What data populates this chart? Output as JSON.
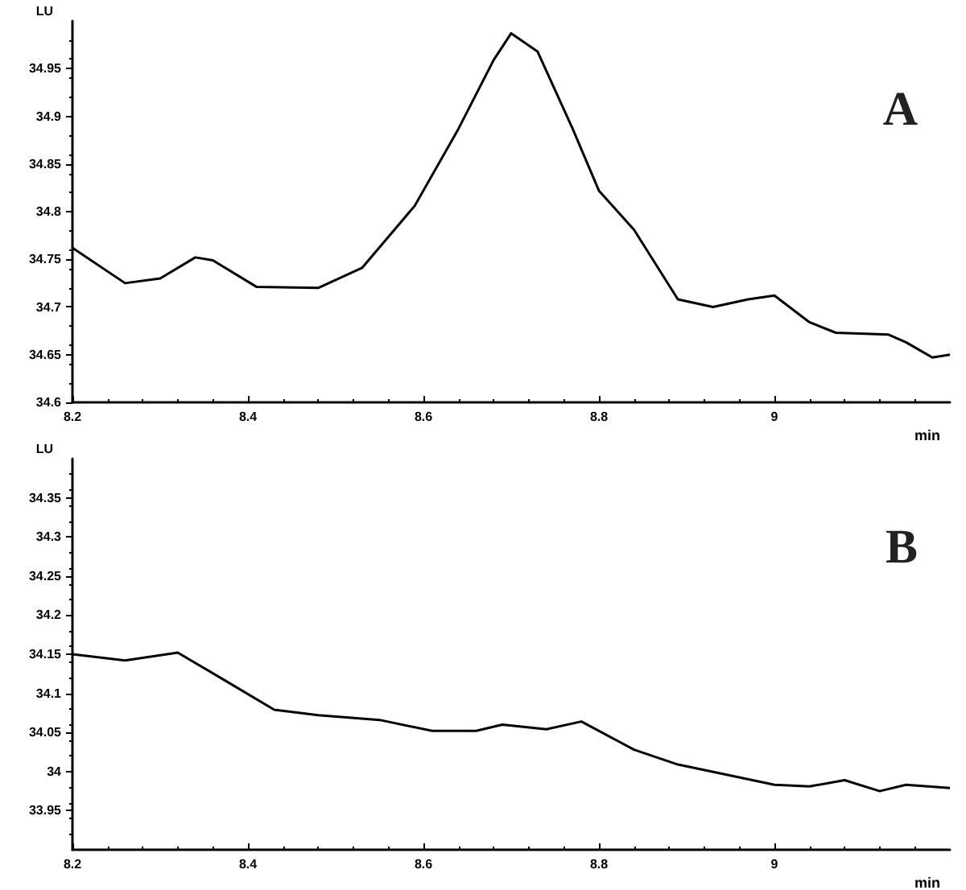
{
  "chart_data": [
    {
      "type": "line",
      "xlabel": "min",
      "ylabel": "LU",
      "annotations": [
        "A"
      ],
      "x": [
        8.2,
        8.26,
        8.3,
        8.34,
        8.36,
        8.41,
        8.48,
        8.53,
        8.59,
        8.64,
        8.68,
        8.7,
        8.73,
        8.77,
        8.8,
        8.84,
        8.89,
        8.93,
        8.97,
        9.0,
        9.04,
        9.07,
        9.13,
        9.15,
        9.18,
        9.2
      ],
      "series": [
        {
          "color": "#000000",
          "values": [
            34.762,
            34.725,
            34.73,
            34.752,
            34.749,
            34.721,
            34.72,
            34.741,
            34.806,
            34.887,
            34.959,
            34.987,
            34.968,
            34.887,
            34.822,
            34.781,
            34.708,
            34.7,
            34.708,
            34.712,
            34.684,
            34.673,
            34.671,
            34.663,
            34.647,
            34.65
          ]
        }
      ],
      "xlim": [
        8.2,
        9.2
      ],
      "xticks": [
        8.2,
        8.4,
        8.6,
        8.8,
        9
      ],
      "ylim": [
        34.6,
        35.0
      ],
      "yticks": [
        34.6,
        34.65,
        34.7,
        34.75,
        34.8,
        34.85,
        34.9,
        34.95
      ],
      "grid": false,
      "marker": "none",
      "line_style": "solid"
    },
    {
      "type": "line",
      "xlabel": "min",
      "ylabel": "LU",
      "annotations": [
        "B"
      ],
      "x": [
        8.2,
        8.26,
        8.32,
        8.37,
        8.43,
        8.48,
        8.55,
        8.61,
        8.66,
        8.69,
        8.74,
        8.78,
        8.84,
        8.89,
        8.95,
        9.0,
        9.04,
        9.08,
        9.12,
        9.15,
        9.2
      ],
      "series": [
        {
          "color": "#000000",
          "values": [
            34.15,
            34.142,
            34.152,
            34.119,
            34.079,
            34.072,
            34.066,
            34.052,
            34.052,
            34.06,
            34.054,
            34.064,
            34.028,
            34.009,
            33.995,
            33.983,
            33.981,
            33.989,
            33.975,
            33.983,
            33.979
          ]
        }
      ],
      "xlim": [
        8.2,
        9.2
      ],
      "xticks": [
        8.2,
        8.4,
        8.6,
        8.8,
        9
      ],
      "ylim": [
        33.9,
        34.4
      ],
      "yticks": [
        33.95,
        34,
        34.05,
        34.1,
        34.15,
        34.2,
        34.25,
        34.3,
        34.35
      ],
      "grid": false,
      "marker": "none",
      "line_style": "solid"
    }
  ]
}
